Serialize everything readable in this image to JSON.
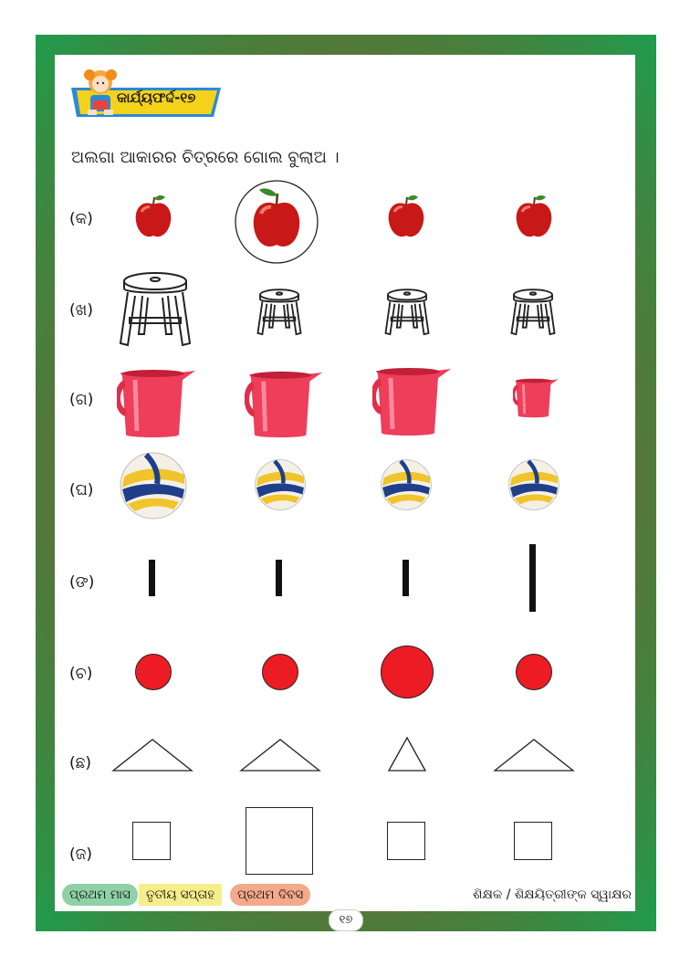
{
  "header": {
    "activity_label": "କାର୍ଯ୍ୟଫର୍ଦ୍ଦ-୧୭"
  },
  "instruction": "ଅଲଗା ଆକାରର ଚିତ୍ରରେ ଗୋଲ ବୁଲାଅ ।",
  "rows": [
    {
      "label": "(କ)",
      "item": "apple"
    },
    {
      "label": "(ଖ)",
      "item": "stool"
    },
    {
      "label": "(ଗ)",
      "item": "jug"
    },
    {
      "label": "(ଘ)",
      "item": "volleyball"
    },
    {
      "label": "(ଙ)",
      "item": "line"
    },
    {
      "label": "(ଚ)",
      "item": "circle"
    },
    {
      "label": "(ଛ)",
      "item": "triangle"
    },
    {
      "label": "(ଜ)",
      "item": "square"
    }
  ],
  "footer": {
    "month": "ପ୍ରଥମ ମାସ",
    "week": "ତୃତୀୟ ସପ୍ତାହ",
    "day": "ପ୍ରଥମ ଦିବସ",
    "signature": "ଶିକ୍ଷକ / ଶିକ୍ଷୟିତ୍ରୀଙ୍କ ସ୍ୱାକ୍ଷର",
    "page_number": "୧୭"
  },
  "colors": {
    "frame_green": "#1f9c4c",
    "frame_brown": "#a45a35",
    "banner_yellow": "#f4d21a",
    "banner_blue": "#2a8ad8",
    "apple_red": "#d31a1a",
    "jug_pink": "#ee3e5a",
    "circle_red": "#ed1c24"
  }
}
